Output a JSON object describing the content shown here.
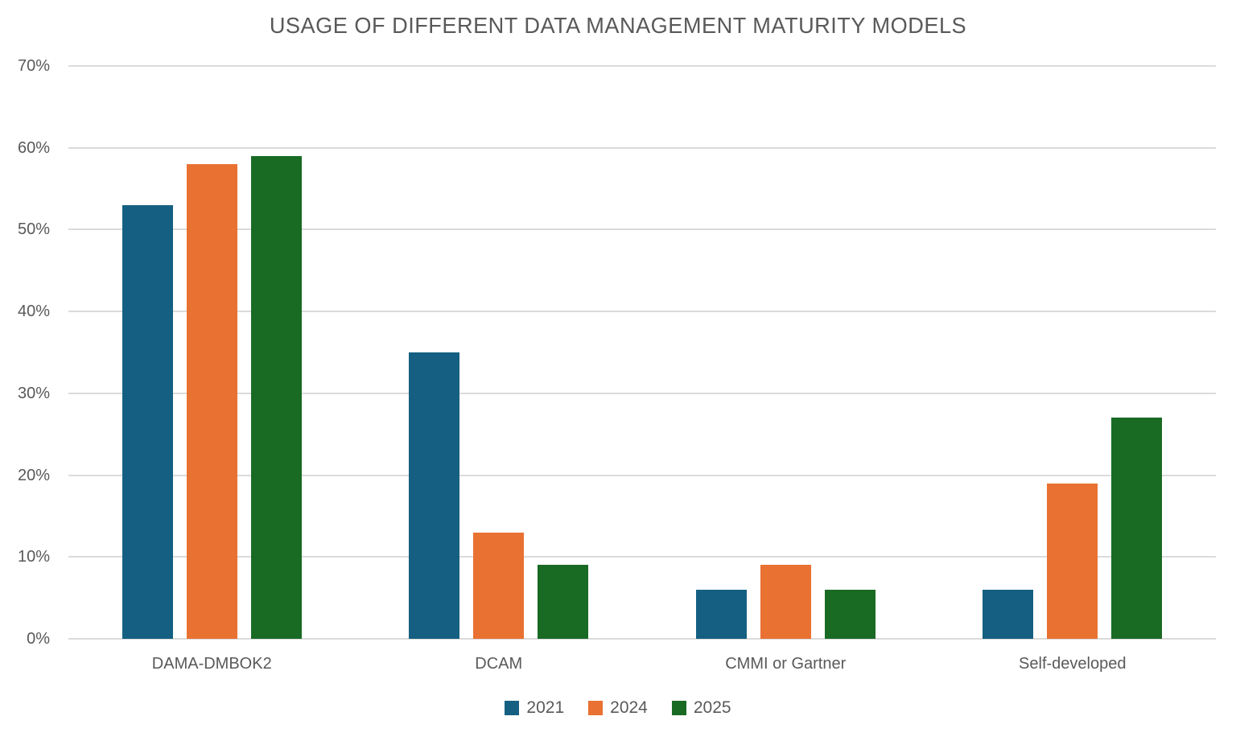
{
  "chart_data": {
    "type": "bar",
    "title": "USAGE OF DIFFERENT DATA MANAGEMENT MATURITY MODELS",
    "categories": [
      "DAMA-DMBOK2",
      "DCAM",
      "CMMI or Gartner",
      "Self-developed"
    ],
    "series": [
      {
        "name": "2021",
        "color": "#156082",
        "values": [
          53,
          35,
          6,
          6
        ]
      },
      {
        "name": "2024",
        "color": "#E97132",
        "values": [
          58,
          13,
          9,
          19
        ]
      },
      {
        "name": "2025",
        "color": "#196B24",
        "values": [
          59,
          9,
          6,
          27
        ]
      }
    ],
    "xlabel": "",
    "ylabel": "",
    "ylim": [
      0,
      70
    ],
    "y_tick_step": 10,
    "y_tick_labels": [
      "0%",
      "10%",
      "20%",
      "30%",
      "40%",
      "50%",
      "60%",
      "70%"
    ],
    "grid": true,
    "legend_position": "bottom"
  },
  "theme": {
    "background": "#ffffff",
    "text_color": "#595959",
    "gridline_color": "#dbdbdb"
  }
}
